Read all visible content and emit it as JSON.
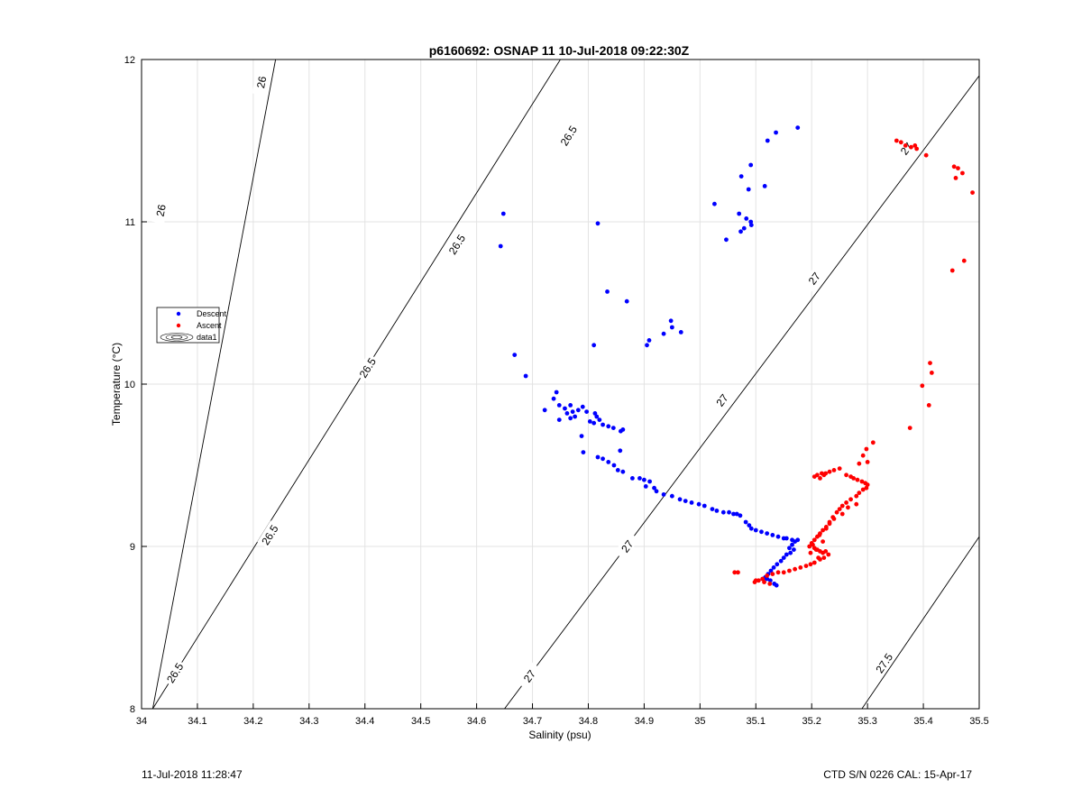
{
  "chart_data": {
    "type": "scatter",
    "title": "p6160692: OSNAP 11 10-Jul-2018 09:22:30Z",
    "xlabel": "Salinity (psu)",
    "ylabel": "Temperature (°C)",
    "xlim": [
      34,
      35.5
    ],
    "ylim": [
      8,
      12
    ],
    "xticks": [
      "34",
      "34.1",
      "34.2",
      "34.3",
      "34.4",
      "34.5",
      "34.6",
      "34.7",
      "34.8",
      "34.9",
      "35",
      "35.1",
      "35.2",
      "35.3",
      "35.4",
      "35.5"
    ],
    "yticks": [
      "8",
      "9",
      "10",
      "11",
      "12"
    ],
    "grid": true,
    "legend": {
      "placement": "left",
      "entries": [
        {
          "label": "Descent",
          "color": "#0000ff",
          "marker": "dot"
        },
        {
          "label": "Ascent",
          "color": "#ff0000",
          "marker": "dot"
        },
        {
          "label": "data1",
          "color": "#000000",
          "marker": "contour"
        }
      ]
    },
    "contours": [
      {
        "label": "26",
        "points": [
          [
            34.02,
            8.0
          ],
          [
            34.24,
            12.0
          ]
        ],
        "labels_at": [
          [
            34.035,
            11.07
          ],
          [
            34.215,
            11.86
          ]
        ]
      },
      {
        "label": "26.5",
        "points": [
          [
            34.02,
            8.0
          ],
          [
            34.75,
            12.0
          ]
        ],
        "labels_at": [
          [
            34.06,
            8.22
          ],
          [
            34.23,
            9.07
          ],
          [
            34.405,
            10.1
          ],
          [
            34.565,
            10.86
          ],
          [
            34.765,
            11.53
          ]
        ]
      },
      {
        "label": "27",
        "points": [
          [
            34.65,
            8.0
          ],
          [
            35.5,
            11.9
          ]
        ],
        "labels_at": [
          [
            34.695,
            8.2
          ],
          [
            34.87,
            9.0
          ],
          [
            35.04,
            9.9
          ],
          [
            35.205,
            10.65
          ],
          [
            35.37,
            11.45
          ]
        ]
      },
      {
        "label": "27.5",
        "points": [
          [
            35.29,
            8.0
          ],
          [
            35.5,
            9.06
          ]
        ],
        "labels_at": [
          [
            35.33,
            8.28
          ]
        ]
      }
    ],
    "series": [
      {
        "name": "Descent",
        "color": "#0000ff",
        "points": [
          [
            35.175,
            11.58
          ],
          [
            35.136,
            11.55
          ],
          [
            35.121,
            11.5
          ],
          [
            35.091,
            11.35
          ],
          [
            35.116,
            11.22
          ],
          [
            35.074,
            11.28
          ],
          [
            35.087,
            11.2
          ],
          [
            35.026,
            11.11
          ],
          [
            35.07,
            11.05
          ],
          [
            35.083,
            11.02
          ],
          [
            35.091,
            11.0
          ],
          [
            35.092,
            10.98
          ],
          [
            35.079,
            10.96
          ],
          [
            35.073,
            10.94
          ],
          [
            35.047,
            10.89
          ],
          [
            34.648,
            11.05
          ],
          [
            34.643,
            10.85
          ],
          [
            34.817,
            10.99
          ],
          [
            34.834,
            10.57
          ],
          [
            34.869,
            10.51
          ],
          [
            34.948,
            10.39
          ],
          [
            34.95,
            10.35
          ],
          [
            34.935,
            10.31
          ],
          [
            34.966,
            10.32
          ],
          [
            34.909,
            10.27
          ],
          [
            34.905,
            10.24
          ],
          [
            34.81,
            10.24
          ],
          [
            34.668,
            10.18
          ],
          [
            34.688,
            10.05
          ],
          [
            34.743,
            9.95
          ],
          [
            34.738,
            9.91
          ],
          [
            34.748,
            9.87
          ],
          [
            34.758,
            9.85
          ],
          [
            34.768,
            9.87
          ],
          [
            34.772,
            9.83
          ],
          [
            34.762,
            9.82
          ],
          [
            34.782,
            9.84
          ],
          [
            34.776,
            9.8
          ],
          [
            34.79,
            9.86
          ],
          [
            34.797,
            9.83
          ],
          [
            34.748,
            9.78
          ],
          [
            34.768,
            9.79
          ],
          [
            34.803,
            9.77
          ],
          [
            34.81,
            9.76
          ],
          [
            34.815,
            9.8
          ],
          [
            34.812,
            9.82
          ],
          [
            34.82,
            9.78
          ],
          [
            34.826,
            9.75
          ],
          [
            34.836,
            9.74
          ],
          [
            34.845,
            9.73
          ],
          [
            34.858,
            9.71
          ],
          [
            34.862,
            9.72
          ],
          [
            34.722,
            9.84
          ],
          [
            34.788,
            9.68
          ],
          [
            34.857,
            9.59
          ],
          [
            34.791,
            9.58
          ],
          [
            34.817,
            9.55
          ],
          [
            34.826,
            9.54
          ],
          [
            34.836,
            9.52
          ],
          [
            34.846,
            9.5
          ],
          [
            34.853,
            9.47
          ],
          [
            34.862,
            9.46
          ],
          [
            34.879,
            9.42
          ],
          [
            34.892,
            9.42
          ],
          [
            34.9,
            9.41
          ],
          [
            34.91,
            9.4
          ],
          [
            34.903,
            9.37
          ],
          [
            34.918,
            9.36
          ],
          [
            34.922,
            9.34
          ],
          [
            34.935,
            9.32
          ],
          [
            34.95,
            9.31
          ],
          [
            34.964,
            9.29
          ],
          [
            34.974,
            9.28
          ],
          [
            34.985,
            9.27
          ],
          [
            34.998,
            9.26
          ],
          [
            35.008,
            9.25
          ],
          [
            35.022,
            9.23
          ],
          [
            35.03,
            9.22
          ],
          [
            35.042,
            9.21
          ],
          [
            35.052,
            9.21
          ],
          [
            35.06,
            9.2
          ],
          [
            35.066,
            9.2
          ],
          [
            35.072,
            9.19
          ],
          [
            35.082,
            9.15
          ],
          [
            35.088,
            9.13
          ],
          [
            35.092,
            9.11
          ],
          [
            35.1,
            9.1
          ],
          [
            35.11,
            9.09
          ],
          [
            35.12,
            9.08
          ],
          [
            35.13,
            9.07
          ],
          [
            35.14,
            9.06
          ],
          [
            35.15,
            9.05
          ],
          [
            35.155,
            9.05
          ],
          [
            35.165,
            9.04
          ],
          [
            35.17,
            9.03
          ],
          [
            35.175,
            9.04
          ],
          [
            35.165,
            9.01
          ],
          [
            35.16,
            8.99
          ],
          [
            35.168,
            8.98
          ],
          [
            35.162,
            8.96
          ],
          [
            35.155,
            8.95
          ],
          [
            35.15,
            8.93
          ],
          [
            35.145,
            8.91
          ],
          [
            35.138,
            8.89
          ],
          [
            35.132,
            8.87
          ],
          [
            35.127,
            8.85
          ],
          [
            35.122,
            8.83
          ],
          [
            35.117,
            8.81
          ],
          [
            35.113,
            8.8
          ],
          [
            35.12,
            8.8
          ],
          [
            35.126,
            8.79
          ],
          [
            35.133,
            8.77
          ],
          [
            35.137,
            8.76
          ]
        ]
      },
      {
        "name": "Ascent",
        "color": "#ff0000",
        "points": [
          [
            35.352,
            11.5
          ],
          [
            35.36,
            11.49
          ],
          [
            35.368,
            11.47
          ],
          [
            35.378,
            11.46
          ],
          [
            35.388,
            11.45
          ],
          [
            35.385,
            11.47
          ],
          [
            35.405,
            11.41
          ],
          [
            35.455,
            11.34
          ],
          [
            35.462,
            11.33
          ],
          [
            35.47,
            11.3
          ],
          [
            35.458,
            11.27
          ],
          [
            35.488,
            11.18
          ],
          [
            35.473,
            10.76
          ],
          [
            35.452,
            10.7
          ],
          [
            35.412,
            10.13
          ],
          [
            35.415,
            10.07
          ],
          [
            35.398,
            9.99
          ],
          [
            35.41,
            9.87
          ],
          [
            35.376,
            9.73
          ],
          [
            35.31,
            9.64
          ],
          [
            35.298,
            9.6
          ],
          [
            35.292,
            9.56
          ],
          [
            35.3,
            9.52
          ],
          [
            35.285,
            9.51
          ],
          [
            35.25,
            9.48
          ],
          [
            35.24,
            9.47
          ],
          [
            35.232,
            9.46
          ],
          [
            35.225,
            9.45
          ],
          [
            35.218,
            9.45
          ],
          [
            35.21,
            9.44
          ],
          [
            35.205,
            9.43
          ],
          [
            35.215,
            9.42
          ],
          [
            35.222,
            9.44
          ],
          [
            35.262,
            9.44
          ],
          [
            35.27,
            9.43
          ],
          [
            35.275,
            9.42
          ],
          [
            35.282,
            9.41
          ],
          [
            35.29,
            9.4
          ],
          [
            35.296,
            9.39
          ],
          [
            35.3,
            9.38
          ],
          [
            35.298,
            9.36
          ],
          [
            35.292,
            9.35
          ],
          [
            35.285,
            9.33
          ],
          [
            35.28,
            9.31
          ],
          [
            35.27,
            9.29
          ],
          [
            35.262,
            9.27
          ],
          [
            35.255,
            9.25
          ],
          [
            35.25,
            9.23
          ],
          [
            35.245,
            9.21
          ],
          [
            35.238,
            9.18
          ],
          [
            35.232,
            9.15
          ],
          [
            35.226,
            9.12
          ],
          [
            35.22,
            9.1
          ],
          [
            35.215,
            9.08
          ],
          [
            35.21,
            9.06
          ],
          [
            35.205,
            9.04
          ],
          [
            35.2,
            9.02
          ],
          [
            35.196,
            9.0
          ],
          [
            35.205,
            8.99
          ],
          [
            35.21,
            8.98
          ],
          [
            35.215,
            8.97
          ],
          [
            35.22,
            8.96
          ],
          [
            35.225,
            8.97
          ],
          [
            35.23,
            8.95
          ],
          [
            35.222,
            8.93
          ],
          [
            35.215,
            8.92
          ],
          [
            35.205,
            8.9
          ],
          [
            35.198,
            8.89
          ],
          [
            35.19,
            8.88
          ],
          [
            35.18,
            8.87
          ],
          [
            35.17,
            8.86
          ],
          [
            35.16,
            8.85
          ],
          [
            35.15,
            8.84
          ],
          [
            35.14,
            8.84
          ],
          [
            35.13,
            8.83
          ],
          [
            35.12,
            8.82
          ],
          [
            35.112,
            8.8
          ],
          [
            35.105,
            8.79
          ],
          [
            35.098,
            8.78
          ],
          [
            35.115,
            8.78
          ],
          [
            35.125,
            8.77
          ],
          [
            35.062,
            8.84
          ],
          [
            35.068,
            8.84
          ],
          [
            35.1,
            8.79
          ],
          [
            35.202,
            9.01
          ],
          [
            35.208,
            8.98
          ],
          [
            35.198,
            8.96
          ],
          [
            35.212,
            8.93
          ],
          [
            35.22,
            9.03
          ],
          [
            35.214,
            9.07
          ],
          [
            35.226,
            9.11
          ],
          [
            35.232,
            9.14
          ],
          [
            35.24,
            9.17
          ],
          [
            35.255,
            9.2
          ],
          [
            35.265,
            9.24
          ],
          [
            35.28,
            9.26
          ]
        ]
      }
    ]
  },
  "footer": {
    "timestamp": "11-Jul-2018 11:28:47",
    "instrument": "CTD S/N 0226  CAL: 15-Apr-17"
  }
}
